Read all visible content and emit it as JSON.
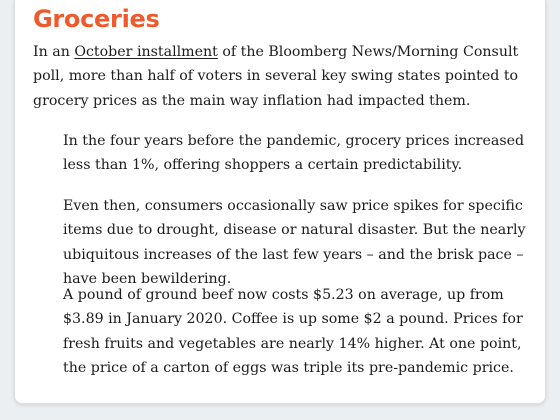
{
  "article": {
    "heading": "Groceries",
    "lead": {
      "before_link": "In an ",
      "link_text": "October installment",
      "after_link": " of the Bloomberg News/Morning Consult poll, more than half of voters in several key swing states pointed to grocery prices as the main way inflation had impacted them."
    },
    "quote_paragraphs": [
      "In the four years before the pandemic, grocery prices increased less than 1%, offering shoppers a certain predictability.",
      "Even then, consumers occasionally saw price spikes for specific items due to drought, disease or natural disaster. But the nearly ubiquitous increases of the last few years – and the brisk pace – have been bewildering.",
      "A pound of ground beef now costs $5.23 on average, up from $3.89 in January 2020. Coffee is up some $2 a pound. Prices for fresh fruits and vegetables are nearly 14% higher. At one point, the price of a carton of eggs was triple its pre-pandemic price."
    ]
  },
  "colors": {
    "heading": "#ef5a2d",
    "text": "#1c1c1c",
    "background": "#eceff1",
    "card": "#ffffff"
  }
}
